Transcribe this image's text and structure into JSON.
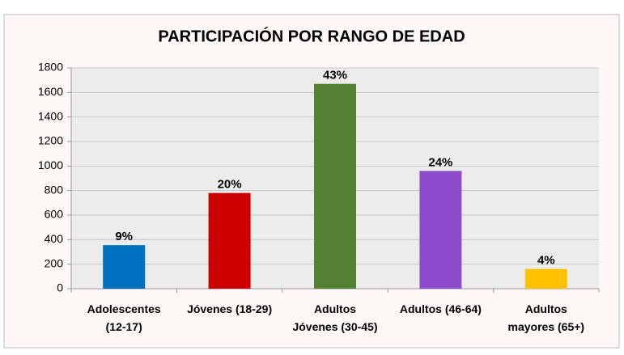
{
  "chart_data": {
    "type": "bar",
    "title": "PARTICIPACIÓN POR RANGO DE EDAD",
    "categories": [
      [
        "Adolescentes",
        "(12-17)"
      ],
      [
        "Jóvenes (18-29)"
      ],
      [
        "Adultos",
        "Jóvenes (30-45)"
      ],
      [
        "Adultos (46-64)"
      ],
      [
        "Adultos",
        "mayores (65+)"
      ]
    ],
    "values": [
      355,
      780,
      1670,
      960,
      160
    ],
    "bar_labels": [
      "9%",
      "20%",
      "43%",
      "24%",
      "4%"
    ],
    "colors": [
      "#0070c0",
      "#cc0000",
      "#548235",
      "#8e4ccc",
      "#ffc000"
    ],
    "ylim": [
      0,
      1800
    ],
    "yticks": [
      0,
      200,
      400,
      600,
      800,
      1000,
      1200,
      1400,
      1600,
      1800
    ],
    "grid": true
  }
}
